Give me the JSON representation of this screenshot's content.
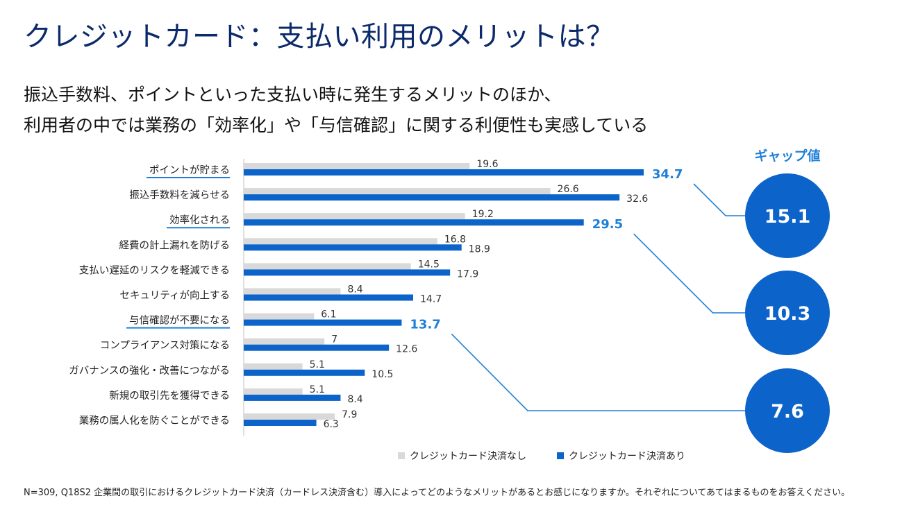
{
  "title": "クレジットカード：支払い利用のメリットは？",
  "subtitle_lines": [
    "振込手数料、ポイントといった支払い時に発生するメリットのほか、",
    "利用者の中では業務の「効率化」や「与信確認」に関する利便性も実感している"
  ],
  "gap_heading": "ギャップ値",
  "footnote": "N=309, Q18S2  企業間の取引におけるクレジットカード決済（カードレス決済含む）導入によってどのようなメリットがあるとお感じになりますか。それぞれについてあてはまるものをお答えください。",
  "colors": {
    "title": "#0b2a6b",
    "series_without": "#d9d9d9",
    "series_with": "#0c63c9",
    "highlight_text": "#1f7fd6",
    "gap_circle": "#0c63c9"
  },
  "chart_data": {
    "type": "bar",
    "orientation": "horizontal",
    "categories": [
      "ポイントが貯まる",
      "振込手数料を減らせる",
      "効率化される",
      "経費の計上漏れを防げる",
      "支払い遅延のリスクを軽減できる",
      "セキュリティが向上する",
      "与信確認が不要になる",
      "コンプライアンス対策になる",
      "ガバナンスの強化・改善につながる",
      "新規の取引先を獲得できる",
      "業務の属人化を防ぐことができる"
    ],
    "series": [
      {
        "name": "クレジットカード決済なし",
        "values": [
          19.6,
          26.6,
          19.2,
          16.8,
          14.5,
          8.4,
          6.1,
          7,
          5.1,
          5.1,
          7.9
        ],
        "labels": [
          "19.6",
          "26.6",
          "19.2",
          "16.8",
          "14.5",
          "8.4",
          "6.1",
          "7",
          "5.1",
          "5.1",
          "7.9"
        ]
      },
      {
        "name": "クレジットカード決済あり",
        "values": [
          34.7,
          32.6,
          29.5,
          18.9,
          17.9,
          14.7,
          13.7,
          12.6,
          10.5,
          8.4,
          6.3
        ],
        "labels": [
          "34.7",
          "32.6",
          "29.5",
          "18.9",
          "17.9",
          "14.7",
          "13.7",
          "12.6",
          "10.5",
          "8.4",
          "6.3"
        ]
      }
    ],
    "highlighted": [
      "ポイントが貯まる",
      "効率化される",
      "与信確認が不要になる"
    ],
    "gaps": [
      {
        "category": "ポイントが貯まる",
        "value": "15.1"
      },
      {
        "category": "効率化される",
        "value": "10.3"
      },
      {
        "category": "与信確認が不要になる",
        "value": "7.6"
      }
    ],
    "legend_position": "bottom",
    "grid": false
  }
}
